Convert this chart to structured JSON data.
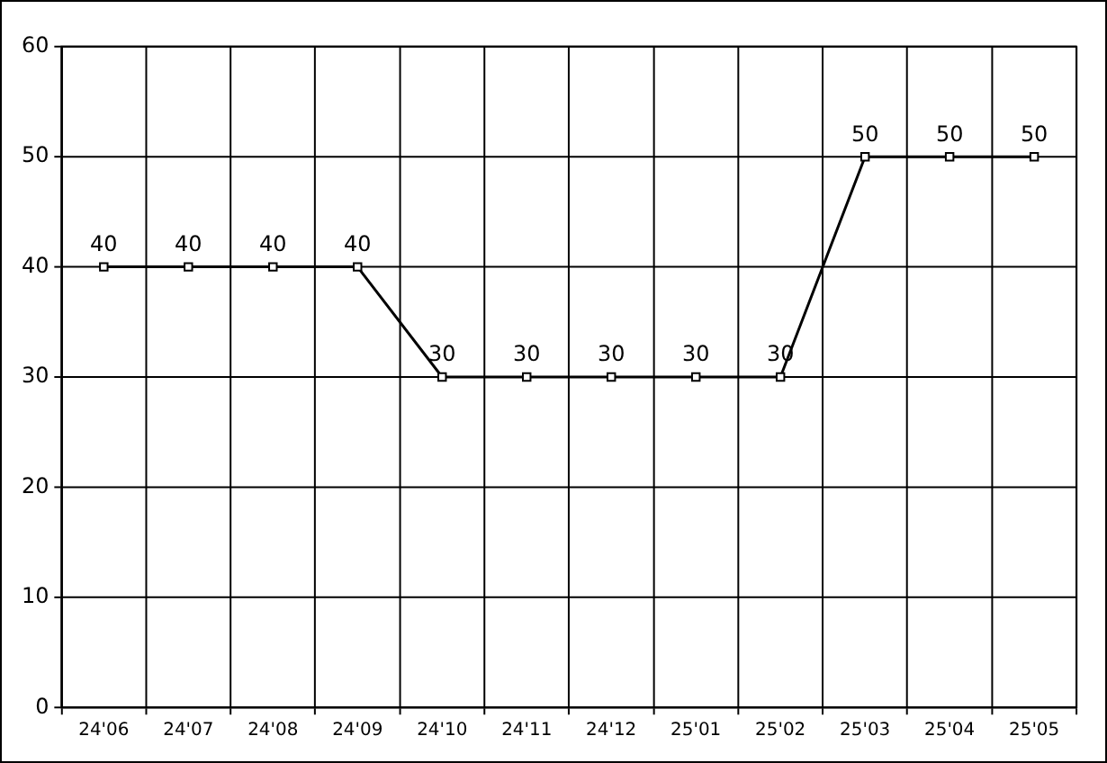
{
  "chart_data": {
    "type": "line",
    "categories": [
      "24'06",
      "24'07",
      "24'08",
      "24'09",
      "24'10",
      "24'11",
      "24'12",
      "25'01",
      "25'02",
      "25'03",
      "25'04",
      "25'05"
    ],
    "series": [
      {
        "color": "#000000",
        "values": [
          40,
          40,
          40,
          40,
          30,
          30,
          30,
          30,
          30,
          50,
          50,
          50
        ]
      }
    ],
    "ylim": [
      0,
      60
    ],
    "yticks": [
      0,
      10,
      20,
      30,
      40,
      50,
      60
    ],
    "grid": true,
    "marker": "square",
    "line_style": "solid",
    "data_labels": true,
    "legend": false
  }
}
